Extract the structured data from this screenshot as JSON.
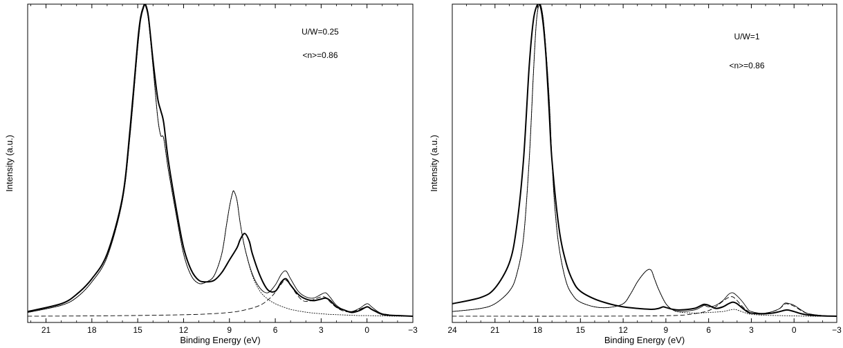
{
  "chart_data": [
    {
      "type": "line",
      "title": "",
      "xlabel": "Binding Energy (eV)",
      "ylabel": "Intensity (a.u.)",
      "xlim": [
        22.2,
        -3.0
      ],
      "ylim": [
        -0.02,
        1.0
      ],
      "x_reversed": true,
      "xticks": [
        21,
        18,
        15,
        12,
        9,
        6,
        3,
        0,
        -3
      ],
      "xtick_labels": [
        "21",
        "18",
        "15",
        "12",
        "9",
        "6",
        "3",
        "0",
        "−3"
      ],
      "grid": false,
      "annotations": [
        "U/W=0.25",
        "<n>=0.86"
      ],
      "series": [
        {
          "style": "solid-thick",
          "x": [
            22.2,
            20,
            19,
            18,
            17,
            16,
            15.5,
            15,
            14.8,
            14.6,
            14.5,
            14.3,
            14,
            13.7,
            13.5,
            13.3,
            13,
            12.5,
            12,
            11.5,
            11,
            10.5,
            10,
            9.5,
            9,
            8.5,
            8.3,
            8,
            7.7,
            7.5,
            7,
            6.5,
            6,
            5.6,
            5.3,
            5,
            4.5,
            4,
            3.5,
            3,
            2.7,
            2.4,
            2,
            1.5,
            1,
            0.5,
            0,
            -0.3,
            -0.7,
            -1,
            -1.5,
            -2,
            -3
          ],
          "y": [
            0.015,
            0.04,
            0.07,
            0.12,
            0.2,
            0.38,
            0.6,
            0.88,
            0.96,
            0.995,
            1.0,
            0.96,
            0.82,
            0.7,
            0.66,
            0.62,
            0.5,
            0.35,
            0.22,
            0.148,
            0.115,
            0.11,
            0.115,
            0.14,
            0.18,
            0.22,
            0.245,
            0.265,
            0.24,
            0.2,
            0.13,
            0.085,
            0.08,
            0.11,
            0.12,
            0.1,
            0.07,
            0.055,
            0.05,
            0.055,
            0.058,
            0.05,
            0.03,
            0.02,
            0.012,
            0.018,
            0.03,
            0.022,
            0.012,
            0.006,
            0.003,
            0.002,
            0.0
          ]
        },
        {
          "style": "solid-thin",
          "x": [
            22.2,
            20,
            19,
            18,
            17,
            16,
            15.5,
            15,
            14.8,
            14.6,
            14.5,
            14.3,
            14,
            13.7,
            13.5,
            13.3,
            13,
            12.5,
            12,
            11.5,
            11,
            10.5,
            10,
            9.5,
            9.2,
            9,
            8.8,
            8.7,
            8.5,
            8.3,
            8,
            7.5,
            7,
            6.5,
            6,
            5.6,
            5.3,
            5,
            4.5,
            4,
            3.5,
            3,
            2.7,
            2.4,
            2,
            1.5,
            1,
            0.5,
            0,
            -0.3,
            -0.7,
            -1,
            -1.5,
            -2,
            -3
          ],
          "y": [
            0.012,
            0.035,
            0.06,
            0.11,
            0.19,
            0.37,
            0.58,
            0.86,
            0.95,
            0.99,
            0.995,
            0.95,
            0.8,
            0.64,
            0.58,
            0.57,
            0.47,
            0.33,
            0.2,
            0.13,
            0.105,
            0.11,
            0.13,
            0.2,
            0.29,
            0.35,
            0.395,
            0.4,
            0.37,
            0.3,
            0.22,
            0.135,
            0.09,
            0.075,
            0.1,
            0.135,
            0.145,
            0.12,
            0.08,
            0.062,
            0.058,
            0.07,
            0.075,
            0.06,
            0.035,
            0.02,
            0.015,
            0.025,
            0.04,
            0.03,
            0.015,
            0.008,
            0.004,
            0.002,
            0.0
          ]
        },
        {
          "style": "dotted",
          "x": [
            22.2,
            20,
            19,
            18,
            17,
            16,
            15.5,
            15,
            14.8,
            14.6,
            14.5,
            14.3,
            14,
            13.7,
            13.5,
            13.3,
            13,
            12.5,
            12,
            11.5,
            11,
            10.5,
            10,
            9.5,
            9.2,
            9,
            8.8,
            8.7,
            8.5,
            8.3,
            8,
            7.5,
            7,
            6.5,
            6,
            5.5,
            5,
            4.5,
            4,
            3.5,
            3,
            2.5,
            2,
            1.5,
            1,
            0.5,
            0,
            -1,
            -2,
            -3
          ],
          "y": [
            0.012,
            0.035,
            0.06,
            0.11,
            0.19,
            0.37,
            0.58,
            0.86,
            0.95,
            0.99,
            0.995,
            0.95,
            0.8,
            0.64,
            0.58,
            0.57,
            0.47,
            0.33,
            0.2,
            0.13,
            0.105,
            0.11,
            0.13,
            0.2,
            0.29,
            0.35,
            0.395,
            0.4,
            0.37,
            0.3,
            0.22,
            0.13,
            0.08,
            0.055,
            0.04,
            0.03,
            0.022,
            0.017,
            0.013,
            0.01,
            0.008,
            0.006,
            0.005,
            0.004,
            0.003,
            0.002,
            0.002,
            0.001,
            0.0,
            0.0
          ]
        },
        {
          "style": "dashed",
          "x": [
            22.2,
            18,
            14,
            11,
            9,
            8,
            7,
            6.3,
            5.8,
            5.5,
            5.3,
            5,
            4.6,
            4.2,
            3.8,
            3.4,
            3,
            2.7,
            2.4,
            2,
            1.5,
            1,
            0.5,
            0,
            -0.5,
            -1,
            -2,
            -3
          ],
          "y": [
            0.0,
            0.001,
            0.003,
            0.006,
            0.012,
            0.02,
            0.035,
            0.06,
            0.09,
            0.11,
            0.115,
            0.1,
            0.07,
            0.05,
            0.048,
            0.055,
            0.062,
            0.06,
            0.045,
            0.028,
            0.016,
            0.014,
            0.022,
            0.03,
            0.018,
            0.008,
            0.002,
            0.0
          ]
        }
      ]
    },
    {
      "type": "line",
      "title": "",
      "xlabel": "Binding Energy (eV)",
      "ylabel": "Intensity (a.u.)",
      "xlim": [
        24.0,
        -3.0
      ],
      "ylim": [
        -0.02,
        1.0
      ],
      "x_reversed": true,
      "xticks": [
        24,
        21,
        18,
        15,
        12,
        9,
        6,
        3,
        0,
        -3
      ],
      "xtick_labels": [
        "24",
        "21",
        "18",
        "15",
        "12",
        "9",
        "6",
        "3",
        "0",
        "−3"
      ],
      "grid": false,
      "annotations": [
        "U/W=1",
        "<n>=0.86"
      ],
      "series": [
        {
          "style": "solid-thick",
          "x": [
            24,
            22,
            21,
            20,
            19.5,
            19,
            18.6,
            18.3,
            18,
            17.8,
            17.6,
            17.4,
            17.2,
            17,
            16.5,
            16,
            15.5,
            15,
            14,
            13,
            12,
            11,
            10,
            9.5,
            9.2,
            9,
            8.5,
            8,
            7,
            6.5,
            6.3,
            6,
            5.5,
            5,
            4.6,
            4.3,
            4,
            3.6,
            3.2,
            3,
            2.5,
            2,
            1.5,
            1,
            0.5,
            0,
            -0.5,
            -1,
            -2,
            -3
          ],
          "y": [
            0.04,
            0.06,
            0.09,
            0.17,
            0.28,
            0.5,
            0.8,
            0.95,
            1.0,
            0.99,
            0.93,
            0.82,
            0.66,
            0.5,
            0.28,
            0.17,
            0.11,
            0.08,
            0.055,
            0.04,
            0.03,
            0.025,
            0.022,
            0.025,
            0.03,
            0.028,
            0.022,
            0.02,
            0.025,
            0.035,
            0.038,
            0.035,
            0.025,
            0.03,
            0.04,
            0.045,
            0.04,
            0.025,
            0.012,
            0.01,
            0.008,
            0.008,
            0.01,
            0.015,
            0.02,
            0.015,
            0.008,
            0.004,
            0.001,
            0.0
          ]
        },
        {
          "style": "solid-thin",
          "x": [
            24,
            22,
            21,
            20,
            19.5,
            19,
            18.6,
            18.3,
            18.1,
            17.9,
            17.7,
            17.5,
            17.2,
            17,
            16.8,
            16.5,
            16,
            15.5,
            15,
            14,
            13,
            12,
            11.5,
            11,
            10.5,
            10.2,
            10,
            9.8,
            9.5,
            9,
            8.5,
            8,
            7,
            6.5,
            6.3,
            6,
            5.5,
            5,
            4.6,
            4.3,
            4,
            3.6,
            3.2,
            3,
            2.5,
            2,
            1.5,
            1,
            0.7,
            0.5,
            0,
            -0.5,
            -1,
            -2,
            -3
          ],
          "y": [
            0.015,
            0.025,
            0.04,
            0.08,
            0.13,
            0.25,
            0.5,
            0.78,
            0.94,
            1.0,
            0.98,
            0.9,
            0.7,
            0.5,
            0.35,
            0.22,
            0.11,
            0.065,
            0.045,
            0.03,
            0.028,
            0.04,
            0.07,
            0.11,
            0.14,
            0.15,
            0.145,
            0.12,
            0.085,
            0.04,
            0.02,
            0.015,
            0.02,
            0.03,
            0.035,
            0.03,
            0.035,
            0.05,
            0.07,
            0.075,
            0.065,
            0.045,
            0.02,
            0.015,
            0.01,
            0.01,
            0.015,
            0.025,
            0.04,
            0.042,
            0.035,
            0.02,
            0.008,
            0.002,
            0.0
          ]
        },
        {
          "style": "dotted",
          "x": [
            24,
            22,
            21,
            20,
            19.5,
            19,
            18.6,
            18.3,
            18.1,
            17.9,
            17.7,
            17.5,
            17.2,
            17,
            16.8,
            16.5,
            16,
            15.5,
            15,
            14,
            13,
            12,
            11.5,
            11,
            10.5,
            10.2,
            10,
            9.8,
            9.5,
            9,
            8.5,
            8,
            7,
            6,
            5,
            4.5,
            4.2,
            4,
            3.5,
            3,
            2,
            1,
            0,
            -1,
            -3
          ],
          "y": [
            0.015,
            0.025,
            0.04,
            0.08,
            0.13,
            0.25,
            0.5,
            0.78,
            0.94,
            1.0,
            0.98,
            0.9,
            0.7,
            0.5,
            0.35,
            0.22,
            0.11,
            0.065,
            0.045,
            0.03,
            0.028,
            0.04,
            0.07,
            0.11,
            0.14,
            0.15,
            0.145,
            0.12,
            0.085,
            0.04,
            0.02,
            0.013,
            0.01,
            0.012,
            0.015,
            0.02,
            0.022,
            0.02,
            0.012,
            0.006,
            0.003,
            0.002,
            0.001,
            0.0,
            0.0
          ]
        },
        {
          "style": "dashed",
          "x": [
            24,
            15,
            10,
            8,
            7,
            6.5,
            6,
            5.5,
            5,
            4.6,
            4.3,
            4,
            3.6,
            3.2,
            3,
            2.5,
            2,
            1.5,
            1,
            0.7,
            0.5,
            0,
            -0.5,
            -1,
            -2,
            -3
          ],
          "y": [
            0.0,
            0.0,
            0.001,
            0.003,
            0.008,
            0.012,
            0.018,
            0.03,
            0.048,
            0.06,
            0.062,
            0.05,
            0.03,
            0.015,
            0.01,
            0.008,
            0.01,
            0.015,
            0.025,
            0.037,
            0.04,
            0.032,
            0.018,
            0.008,
            0.002,
            0.0
          ]
        }
      ]
    }
  ]
}
